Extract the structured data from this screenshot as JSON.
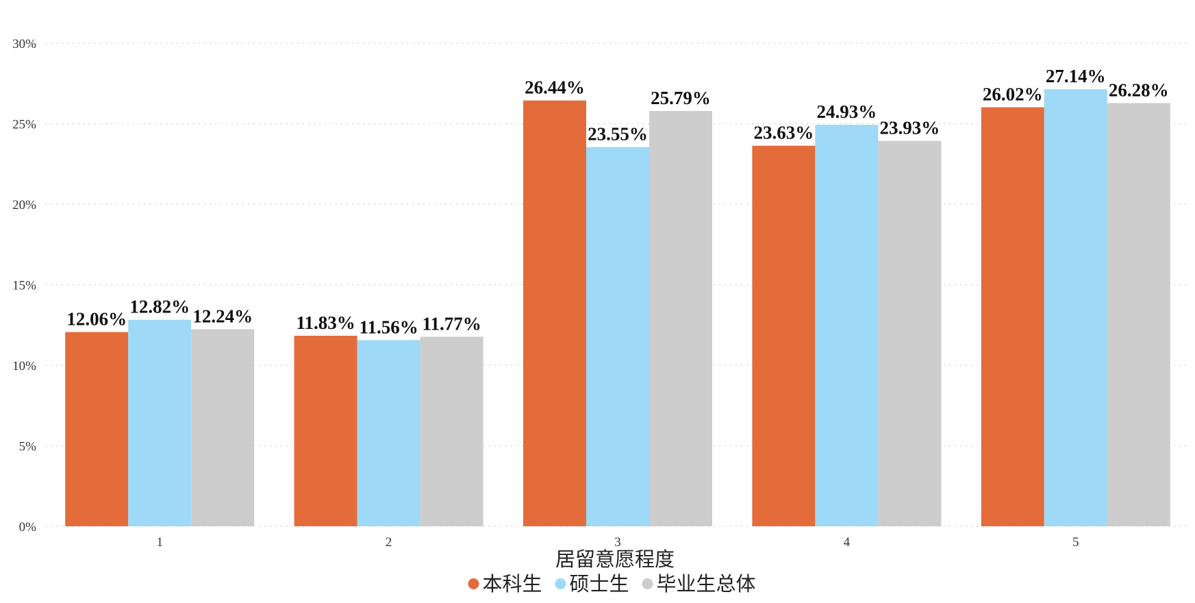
{
  "chart_data": {
    "type": "bar",
    "categories": [
      "1",
      "2",
      "3",
      "4",
      "5"
    ],
    "series": [
      {
        "name": "本科生",
        "color": "#E46C3A",
        "values": [
          12.06,
          11.83,
          26.44,
          23.63,
          26.02
        ]
      },
      {
        "name": "硕士生",
        "color": "#9ED9F7",
        "values": [
          12.82,
          11.56,
          23.55,
          24.93,
          27.14
        ]
      },
      {
        "name": "毕业生总体",
        "color": "#CDCDCD",
        "values": [
          12.24,
          11.77,
          25.79,
          23.93,
          26.28
        ]
      }
    ],
    "data_labels": [
      [
        "12.06%",
        "11.83%",
        "26.44%",
        "23.63%",
        "26.02%"
      ],
      [
        "12.82%",
        "11.56%",
        "23.55%",
        "24.93%",
        "27.14%"
      ],
      [
        "12.24%",
        "11.77%",
        "25.79%",
        "23.93%",
        "26.28%"
      ]
    ],
    "yticks": [
      0,
      5,
      10,
      15,
      20,
      25,
      30
    ],
    "ytick_labels": [
      "0%",
      "5%",
      "10%",
      "15%",
      "20%",
      "25%",
      "30%"
    ],
    "ylim": [
      0,
      30
    ],
    "title": "",
    "xlabel": "居留意愿程度",
    "ylabel": "",
    "grid": true,
    "legend_position": "bottom"
  }
}
